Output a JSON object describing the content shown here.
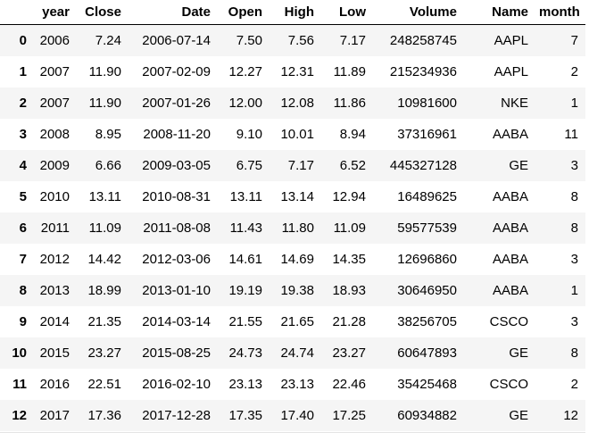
{
  "columns": [
    "year",
    "Close",
    "Date",
    "Open",
    "High",
    "Low",
    "Volume",
    "Name",
    "month"
  ],
  "rows": [
    {
      "index": "0",
      "cells": [
        "2006",
        "7.24",
        "2006-07-14",
        "7.50",
        "7.56",
        "7.17",
        "248258745",
        "AAPL",
        "7"
      ]
    },
    {
      "index": "1",
      "cells": [
        "2007",
        "11.90",
        "2007-02-09",
        "12.27",
        "12.31",
        "11.89",
        "215234936",
        "AAPL",
        "2"
      ]
    },
    {
      "index": "2",
      "cells": [
        "2007",
        "11.90",
        "2007-01-26",
        "12.00",
        "12.08",
        "11.86",
        "10981600",
        "NKE",
        "1"
      ]
    },
    {
      "index": "3",
      "cells": [
        "2008",
        "8.95",
        "2008-11-20",
        "9.10",
        "10.01",
        "8.94",
        "37316961",
        "AABA",
        "11"
      ]
    },
    {
      "index": "4",
      "cells": [
        "2009",
        "6.66",
        "2009-03-05",
        "6.75",
        "7.17",
        "6.52",
        "445327128",
        "GE",
        "3"
      ]
    },
    {
      "index": "5",
      "cells": [
        "2010",
        "13.11",
        "2010-08-31",
        "13.11",
        "13.14",
        "12.94",
        "16489625",
        "AABA",
        "8"
      ]
    },
    {
      "index": "6",
      "cells": [
        "2011",
        "11.09",
        "2011-08-08",
        "11.43",
        "11.80",
        "11.09",
        "59577539",
        "AABA",
        "8"
      ]
    },
    {
      "index": "7",
      "cells": [
        "2012",
        "14.42",
        "2012-03-06",
        "14.61",
        "14.69",
        "14.35",
        "12696860",
        "AABA",
        "3"
      ]
    },
    {
      "index": "8",
      "cells": [
        "2013",
        "18.99",
        "2013-01-10",
        "19.19",
        "19.38",
        "18.93",
        "30646950",
        "AABA",
        "1"
      ]
    },
    {
      "index": "9",
      "cells": [
        "2014",
        "21.35",
        "2014-03-14",
        "21.55",
        "21.65",
        "21.28",
        "38256705",
        "CSCO",
        "3"
      ]
    },
    {
      "index": "10",
      "cells": [
        "2015",
        "23.27",
        "2015-08-25",
        "24.73",
        "24.74",
        "23.27",
        "60647893",
        "GE",
        "8"
      ]
    },
    {
      "index": "11",
      "cells": [
        "2016",
        "22.51",
        "2016-02-10",
        "23.13",
        "23.13",
        "22.46",
        "35425468",
        "CSCO",
        "2"
      ]
    },
    {
      "index": "12",
      "cells": [
        "2017",
        "17.36",
        "2017-12-28",
        "17.35",
        "17.40",
        "17.25",
        "60934882",
        "GE",
        "12"
      ]
    }
  ]
}
